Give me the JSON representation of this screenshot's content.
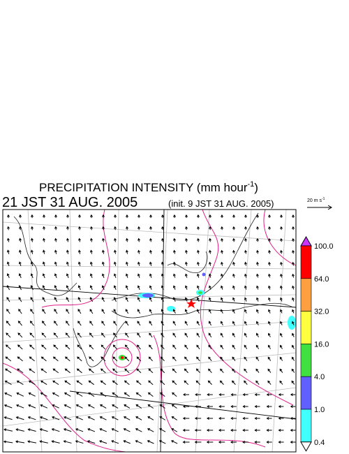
{
  "title": {
    "text": "PRECIPITATION INTENSITY (mm hour",
    "exponent": "-1",
    "close": ")"
  },
  "valid_time": "21 JST 31 AUG. 2005",
  "init_time": "(init. 9 JST 31 AUG. 2005)",
  "reference_vector": {
    "label": "20 m s",
    "exponent": "-1"
  },
  "colorbar": {
    "labels": [
      "100.0",
      "64.0",
      "32.0",
      "16.0",
      "4.0",
      "1.0",
      "0.4"
    ],
    "colors": [
      "#cc33ff",
      "#ff0000",
      "#ffa040",
      "#ffff40",
      "#40e040",
      "#6060ff",
      "#40ffff",
      "#ffffff"
    ]
  }
}
